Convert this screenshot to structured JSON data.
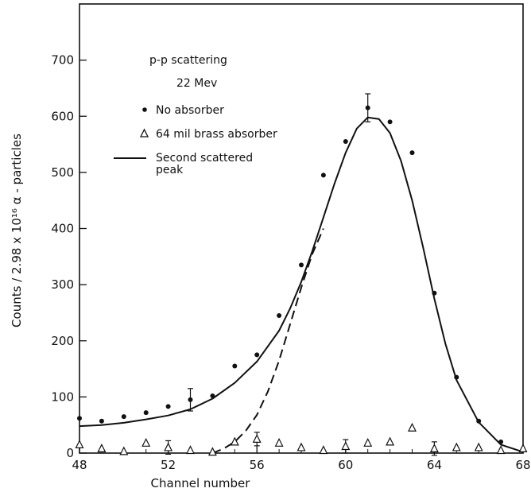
{
  "chart_data": {
    "type": "scatter",
    "xlabel": "Channel number",
    "ylabel": "Counts / 2.98 x 10¹⁶ α - particles",
    "xlim": [
      48,
      68
    ],
    "ylim": [
      0,
      800
    ],
    "x_ticks": [
      48,
      52,
      56,
      60,
      64,
      68
    ],
    "y_ticks": [
      0,
      100,
      200,
      300,
      400,
      500,
      600,
      700
    ],
    "grid": false,
    "legend_position": "top-left",
    "annotations": {
      "title_line1": "p-p scattering",
      "title_line2": "22 Mev"
    },
    "legend": [
      {
        "symbol": "dot",
        "label": "No absorber"
      },
      {
        "symbol": "triangle",
        "label": "64 mil brass absorber"
      },
      {
        "symbol": "line",
        "label_line1": "Second scattered",
        "label_line2": "peak"
      }
    ],
    "series": [
      {
        "name": "No absorber",
        "marker": "dot",
        "x": [
          48,
          49,
          50,
          51,
          52,
          53,
          54,
          55,
          56,
          57,
          58,
          59,
          60,
          61,
          62,
          63,
          64,
          65,
          66,
          67,
          68
        ],
        "y": [
          62,
          57,
          65,
          72,
          83,
          95,
          102,
          155,
          175,
          245,
          335,
          495,
          555,
          615,
          590,
          535,
          285,
          135,
          57,
          20,
          5
        ]
      },
      {
        "name": "64 mil brass absorber",
        "marker": "triangle",
        "x": [
          48,
          49,
          50,
          51,
          52,
          53,
          54,
          55,
          56,
          57,
          58,
          59,
          60,
          61,
          62,
          63,
          64,
          65,
          66,
          67,
          68
        ],
        "y": [
          15,
          8,
          3,
          18,
          10,
          5,
          2,
          20,
          25,
          18,
          10,
          5,
          12,
          18,
          20,
          45,
          8,
          10,
          10,
          5,
          8
        ]
      }
    ],
    "error_bars": [
      {
        "x": 53,
        "y": 95,
        "err": 20
      },
      {
        "x": 61,
        "y": 615,
        "err": 25
      },
      {
        "x": 52,
        "y": 10,
        "err": 12
      },
      {
        "x": 56,
        "y": 25,
        "err": 12
      },
      {
        "x": 60,
        "y": 12,
        "err": 12
      },
      {
        "x": 64,
        "y": 8,
        "err": 12
      }
    ],
    "curves": [
      {
        "name": "Fitted curve",
        "style": "solid",
        "x": [
          48,
          49,
          50,
          51,
          52,
          53,
          54,
          55,
          56,
          57,
          57.5,
          58,
          58.5,
          59,
          59.5,
          60,
          60.5,
          61,
          61.5,
          62,
          62.5,
          63,
          63.5,
          64,
          64.5,
          65,
          66,
          67,
          68
        ],
        "y": [
          48,
          50,
          54,
          60,
          67,
          78,
          97,
          125,
          163,
          218,
          258,
          305,
          360,
          420,
          480,
          535,
          578,
          598,
          595,
          570,
          520,
          450,
          365,
          275,
          195,
          130,
          55,
          15,
          2
        ]
      },
      {
        "name": "Second scattered peak",
        "style": "dashed",
        "x": [
          54,
          54.5,
          55,
          55.5,
          56,
          56.5,
          57,
          57.5,
          58,
          58.5,
          59
        ],
        "y": [
          0,
          8,
          20,
          40,
          68,
          110,
          165,
          230,
          295,
          355,
          400
        ]
      }
    ]
  }
}
